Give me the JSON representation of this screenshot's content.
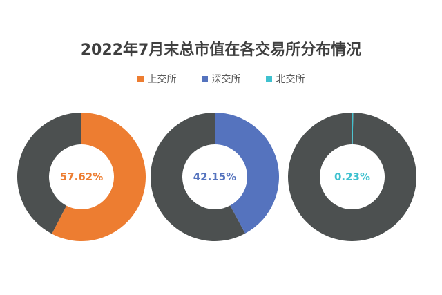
{
  "chart_data": {
    "type": "pie",
    "variant": "donut",
    "title": "2022年7月末总市值在各交易所分布情况",
    "legend": {
      "placement": "top-center",
      "entries": [
        {
          "name": "上交所",
          "color": "#ED7D31"
        },
        {
          "name": "深交所",
          "color": "#5573BE"
        },
        {
          "name": "北交所",
          "color": "#3FC1CF"
        }
      ]
    },
    "remainder_color": "#4C5050",
    "charts": [
      {
        "name": "上交所",
        "value": 57.62,
        "label": "57.62%",
        "color": "#ED7D31"
      },
      {
        "name": "深交所",
        "value": 42.15,
        "label": "42.15%",
        "color": "#5573BE"
      },
      {
        "name": "北交所",
        "value": 0.23,
        "label": "0.23%",
        "color": "#3FC1CF"
      }
    ]
  }
}
